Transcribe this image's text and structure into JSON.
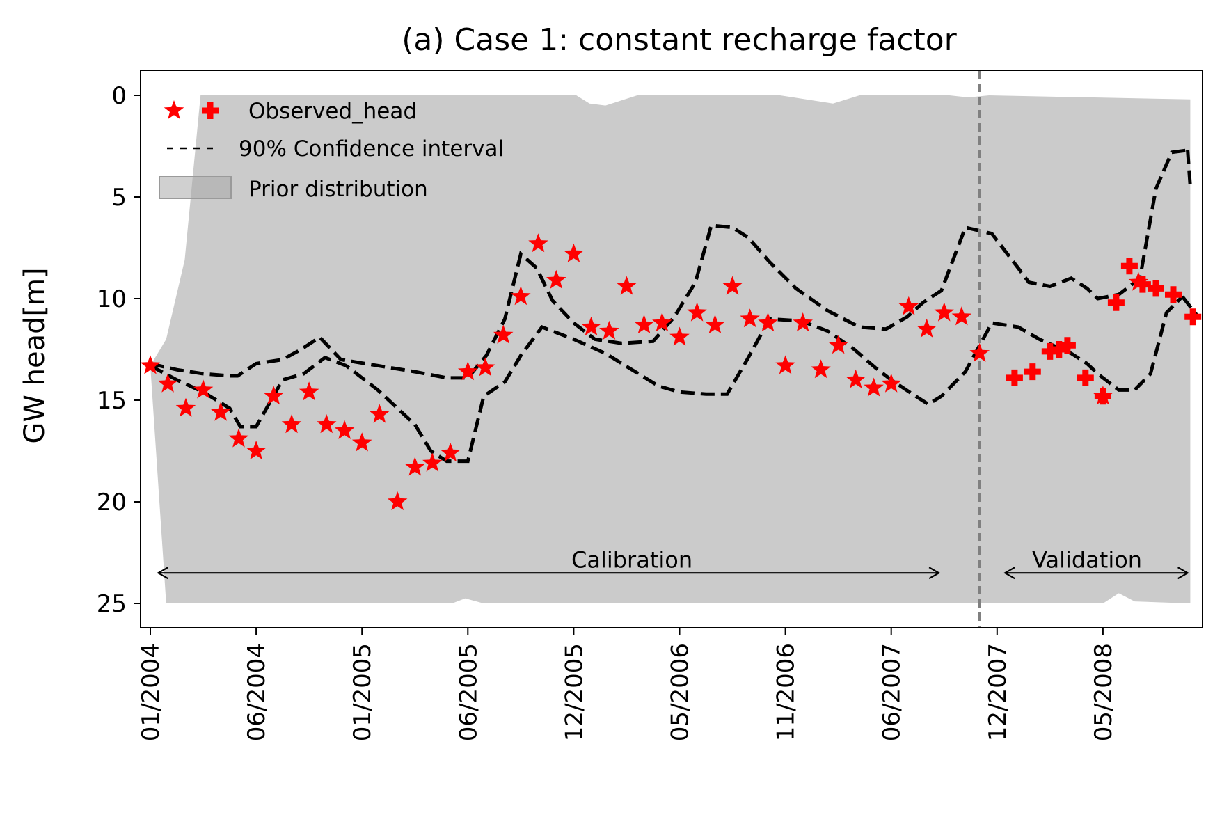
{
  "chart_data": {
    "type": "line",
    "title": "(a) Case 1: constant recharge factor",
    "xlabel": "",
    "ylabel": "GW head[m]",
    "y_inverted": true,
    "ylim": [
      26.2,
      -1.3
    ],
    "yticks": [
      0,
      5,
      10,
      15,
      20,
      25
    ],
    "xlim": [
      -0.2,
      19.8
    ],
    "xticks": [
      {
        "x": 0,
        "label": "01/2004"
      },
      {
        "x": 2,
        "label": "06/2004"
      },
      {
        "x": 4,
        "label": "01/2005"
      },
      {
        "x": 6,
        "label": "06/2005"
      },
      {
        "x": 8,
        "label": "12/2005"
      },
      {
        "x": 10,
        "label": "05/2006"
      },
      {
        "x": 12,
        "label": "11/2006"
      },
      {
        "x": 14,
        "label": "06/2007"
      },
      {
        "x": 16,
        "label": "12/2007"
      },
      {
        "x": 18,
        "label": "05/2008"
      }
    ],
    "grid": false,
    "legend": {
      "position": "upper left",
      "entries": [
        {
          "label": "Observed_head",
          "marker": "star-and-plus"
        },
        {
          "label": "90% Confidence interval",
          "marker": "dashed-line"
        },
        {
          "label": "Prior distribution",
          "marker": "grey-patch"
        }
      ]
    },
    "split_x": 15.67,
    "annotations": [
      {
        "text": "Calibration",
        "x_start": 0.15,
        "x_end": 14.9,
        "y": 23.5,
        "label_x": 9.1,
        "label_y": 22.9
      },
      {
        "text": "Validation",
        "x_start": 16.15,
        "x_end": 19.6,
        "y": 23.5,
        "label_x": 17.7,
        "label_y": 22.9
      }
    ],
    "colors": {
      "observed": "#ff0000",
      "confidence": "#000000",
      "prior": "#cbcbcb",
      "split_line": "#808080"
    },
    "prior_upper": {
      "x": [
        0,
        0.3,
        0.65,
        0.95,
        1.2,
        5.2,
        5.9,
        6.2,
        6.45,
        8.05,
        8.3,
        8.6,
        9.2,
        11.1,
        11.45,
        11.9,
        12.9,
        13.4,
        15.1,
        15.45,
        15.85,
        19.65
      ],
      "y": [
        13.3,
        12.0,
        8.1,
        0.0,
        0.0,
        0.0,
        0.0,
        0.0,
        0.0,
        0.0,
        0.4,
        0.5,
        0.0,
        0.0,
        0.0,
        0.0,
        0.4,
        0.0,
        0.0,
        0.1,
        0.0,
        0.2
      ]
    },
    "prior_lower": {
      "x": [
        0,
        0.3,
        5.7,
        5.95,
        6.3,
        17.2,
        18.0,
        18.3,
        18.6,
        19.65
      ],
      "y": [
        13.3,
        25.0,
        25.0,
        24.75,
        25.0,
        25.0,
        25.0,
        24.5,
        24.9,
        25.0
      ]
    },
    "ci_upper": {
      "x": [
        0,
        0.5,
        1.0,
        1.5,
        1.65,
        2.0,
        2.5,
        2.85,
        3.2,
        3.6,
        4.3,
        5.0,
        5.6,
        6.0,
        6.35,
        6.7,
        7.0,
        7.3,
        7.6,
        8.0,
        8.4,
        8.9,
        9.5,
        9.9,
        10.3,
        10.6,
        11.0,
        11.3,
        11.7,
        12.2,
        12.8,
        13.4,
        13.9,
        14.3,
        14.6,
        14.95,
        15.4,
        15.9,
        16.4,
        16.6,
        17.0,
        17.4,
        17.7,
        17.9,
        18.3,
        18.7,
        19.0,
        19.3,
        19.6
      ],
      "y": [
        13.2,
        13.5,
        13.7,
        13.8,
        13.8,
        13.2,
        13.0,
        12.5,
        11.9,
        13.0,
        13.3,
        13.6,
        13.9,
        13.9,
        12.8,
        11.0,
        7.8,
        8.5,
        10.1,
        11.2,
        12.0,
        12.2,
        12.1,
        10.9,
        9.2,
        6.4,
        6.5,
        7.0,
        8.2,
        9.5,
        10.6,
        11.4,
        11.5,
        10.9,
        10.2,
        9.6,
        6.5,
        6.8,
        8.5,
        9.2,
        9.4,
        9.0,
        9.5,
        10.0,
        9.8,
        9.0,
        4.6,
        2.8,
        2.7
      ],
      "y_note": "values read off the figure"
    },
    "ci_lower": {
      "x": [
        0,
        0.5,
        1.0,
        1.5,
        1.7,
        2.0,
        2.5,
        2.9,
        3.3,
        3.7,
        4.3,
        5.0,
        5.3,
        5.6,
        6.0,
        6.3,
        6.7,
        7.0,
        7.4,
        8.0,
        8.6,
        9.1,
        9.6,
        10.0,
        10.5,
        10.9,
        11.3,
        11.7,
        12.3,
        12.8,
        13.3,
        13.7,
        14.0,
        14.4,
        14.7,
        14.95,
        15.4,
        15.9,
        16.4,
        16.8,
        17.4,
        17.7,
        17.9,
        18.3,
        18.6,
        18.9,
        19.2,
        19.5
      ],
      "y": [
        13.3,
        14.0,
        14.6,
        15.4,
        16.3,
        16.3,
        14.0,
        13.7,
        12.9,
        13.3,
        14.5,
        16.2,
        17.5,
        18.0,
        18.0,
        14.8,
        14.1,
        12.8,
        11.4,
        12.0,
        12.7,
        13.5,
        14.3,
        14.6,
        14.7,
        14.7,
        12.9,
        11.0,
        11.1,
        11.6,
        12.5,
        13.4,
        14.0,
        14.7,
        15.2,
        14.8,
        13.6,
        11.2,
        11.4,
        12.0,
        12.7,
        13.2,
        13.7,
        14.5,
        14.5,
        13.7,
        10.7,
        9.9
      ],
      "y_note": "values read off the figure"
    },
    "ci_tail_upper": {
      "x": [
        19.6,
        19.65
      ],
      "y": [
        2.7,
        4.5
      ]
    },
    "ci_tail_lower": {
      "x": [
        19.5,
        19.8
      ],
      "y": [
        9.9,
        10.9
      ]
    },
    "observed_calibration": {
      "marker": "star",
      "x": [
        0.0,
        0.33,
        0.67,
        1.0,
        1.33,
        1.67,
        2.0,
        2.33,
        2.67,
        3.0,
        3.33,
        3.67,
        4.0,
        4.33,
        4.67,
        5.0,
        5.33,
        5.67,
        6.0,
        6.33,
        6.67,
        7.0,
        7.33,
        7.67,
        8.0,
        8.33,
        8.67,
        9.0,
        9.33,
        9.67,
        10.0,
        10.33,
        10.67,
        11.0,
        11.33,
        11.67,
        12.0,
        12.33,
        12.67,
        13.0,
        13.33,
        13.67,
        14.0,
        14.33,
        14.67,
        15.0,
        15.33
      ],
      "y": [
        13.3,
        14.2,
        15.4,
        14.5,
        15.6,
        16.9,
        17.5,
        14.8,
        16.2,
        14.6,
        16.2,
        16.5,
        17.1,
        15.7,
        20.0,
        18.3,
        18.1,
        17.6,
        13.6,
        13.4,
        11.8,
        9.9,
        7.3,
        9.1,
        7.8,
        11.4,
        11.6,
        9.4,
        11.3,
        11.2,
        11.9,
        10.7,
        11.3,
        9.4,
        11.0,
        11.2,
        13.3,
        11.2,
        13.5,
        12.3,
        14.0,
        14.4,
        14.2,
        10.4,
        11.5,
        10.7,
        10.9
      ]
    },
    "observed_validation_star": {
      "marker": "star",
      "x": [
        15.67,
        18.0,
        18.67
      ],
      "y": [
        12.7,
        14.8,
        9.2
      ]
    },
    "observed_validation_plus": {
      "marker": "plus",
      "x": [
        16.33,
        16.67,
        17.0,
        17.17,
        17.33,
        17.67,
        18.0,
        18.25,
        18.5,
        18.75,
        19.0,
        19.33,
        19.7
      ],
      "y": [
        13.9,
        13.6,
        12.6,
        12.5,
        12.3,
        13.9,
        14.8,
        10.2,
        8.4,
        9.3,
        9.5,
        9.8,
        10.9
      ]
    }
  }
}
